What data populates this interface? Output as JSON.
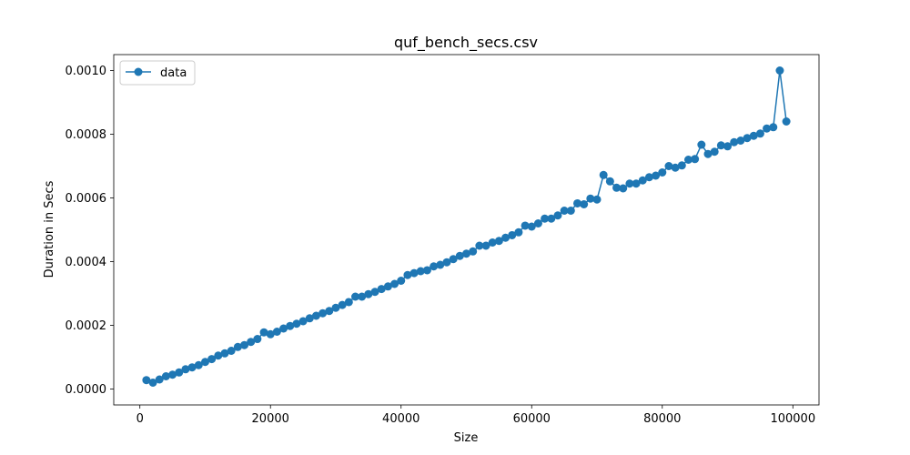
{
  "chart_data": {
    "type": "line",
    "title": "quf_bench_secs.csv",
    "xlabel": "Size",
    "ylabel": "Duration in Secs",
    "xlim": [
      -4000,
      104000
    ],
    "ylim": [
      -5e-05,
      0.00105
    ],
    "xticks": [
      0,
      20000,
      40000,
      60000,
      80000,
      100000
    ],
    "xtick_labels": [
      "0",
      "20000",
      "40000",
      "60000",
      "80000",
      "100000"
    ],
    "yticks": [
      0.0,
      0.0002,
      0.0004,
      0.0006,
      0.0008,
      0.001
    ],
    "ytick_labels": [
      "0.0000",
      "0.0002",
      "0.0004",
      "0.0006",
      "0.0008",
      "0.0010"
    ],
    "grid": false,
    "legend_position": "top-left",
    "series": [
      {
        "name": "data",
        "color": "#1f77b4",
        "marker": "circle",
        "x": [
          1000,
          2000,
          3000,
          4000,
          5000,
          6000,
          7000,
          8000,
          9000,
          10000,
          11000,
          12000,
          13000,
          14000,
          15000,
          16000,
          17000,
          18000,
          19000,
          20000,
          21000,
          22000,
          23000,
          24000,
          25000,
          26000,
          27000,
          28000,
          29000,
          30000,
          31000,
          32000,
          33000,
          34000,
          35000,
          36000,
          37000,
          38000,
          39000,
          40000,
          41000,
          42000,
          43000,
          44000,
          45000,
          46000,
          47000,
          48000,
          49000,
          50000,
          51000,
          52000,
          53000,
          54000,
          55000,
          56000,
          57000,
          58000,
          59000,
          60000,
          61000,
          62000,
          63000,
          64000,
          65000,
          66000,
          67000,
          68000,
          69000,
          70000,
          71000,
          72000,
          73000,
          74000,
          75000,
          76000,
          77000,
          78000,
          79000,
          80000,
          81000,
          82000,
          83000,
          84000,
          85000,
          86000,
          87000,
          88000,
          89000,
          90000,
          91000,
          92000,
          93000,
          94000,
          95000,
          96000,
          97000,
          98000,
          99000
        ],
        "y": [
          2.8e-05,
          2e-05,
          3e-05,
          4e-05,
          4.5e-05,
          5.2e-05,
          6.2e-05,
          6.8e-05,
          7.5e-05,
          8.5e-05,
          9.4e-05,
          0.000105,
          0.000112,
          0.00012,
          0.000132,
          0.000138,
          0.000148,
          0.000157,
          0.000178,
          0.000172,
          0.00018,
          0.00019,
          0.000198,
          0.000205,
          0.000213,
          0.000222,
          0.00023,
          0.000238,
          0.000245,
          0.000255,
          0.000264,
          0.000273,
          0.00029,
          0.00029,
          0.000298,
          0.000305,
          0.000314,
          0.000322,
          0.00033,
          0.00034,
          0.000358,
          0.000364,
          0.00037,
          0.000373,
          0.000385,
          0.00039,
          0.000398,
          0.000408,
          0.000418,
          0.000425,
          0.000432,
          0.00045,
          0.00045,
          0.00046,
          0.000465,
          0.000475,
          0.000483,
          0.000492,
          0.000513,
          0.00051,
          0.00052,
          0.000535,
          0.000535,
          0.000545,
          0.00056,
          0.00056,
          0.000583,
          0.00058,
          0.000598,
          0.000595,
          0.000672,
          0.000652,
          0.000632,
          0.00063,
          0.000645,
          0.000645,
          0.000655,
          0.000665,
          0.00067,
          0.00068,
          0.0007,
          0.000695,
          0.000702,
          0.00072,
          0.000722,
          0.000767,
          0.000738,
          0.000745,
          0.000765,
          0.000762,
          0.000775,
          0.00078,
          0.000788,
          0.000795,
          0.000802,
          0.000818,
          0.000822,
          0.001,
          0.00084
        ]
      }
    ]
  }
}
